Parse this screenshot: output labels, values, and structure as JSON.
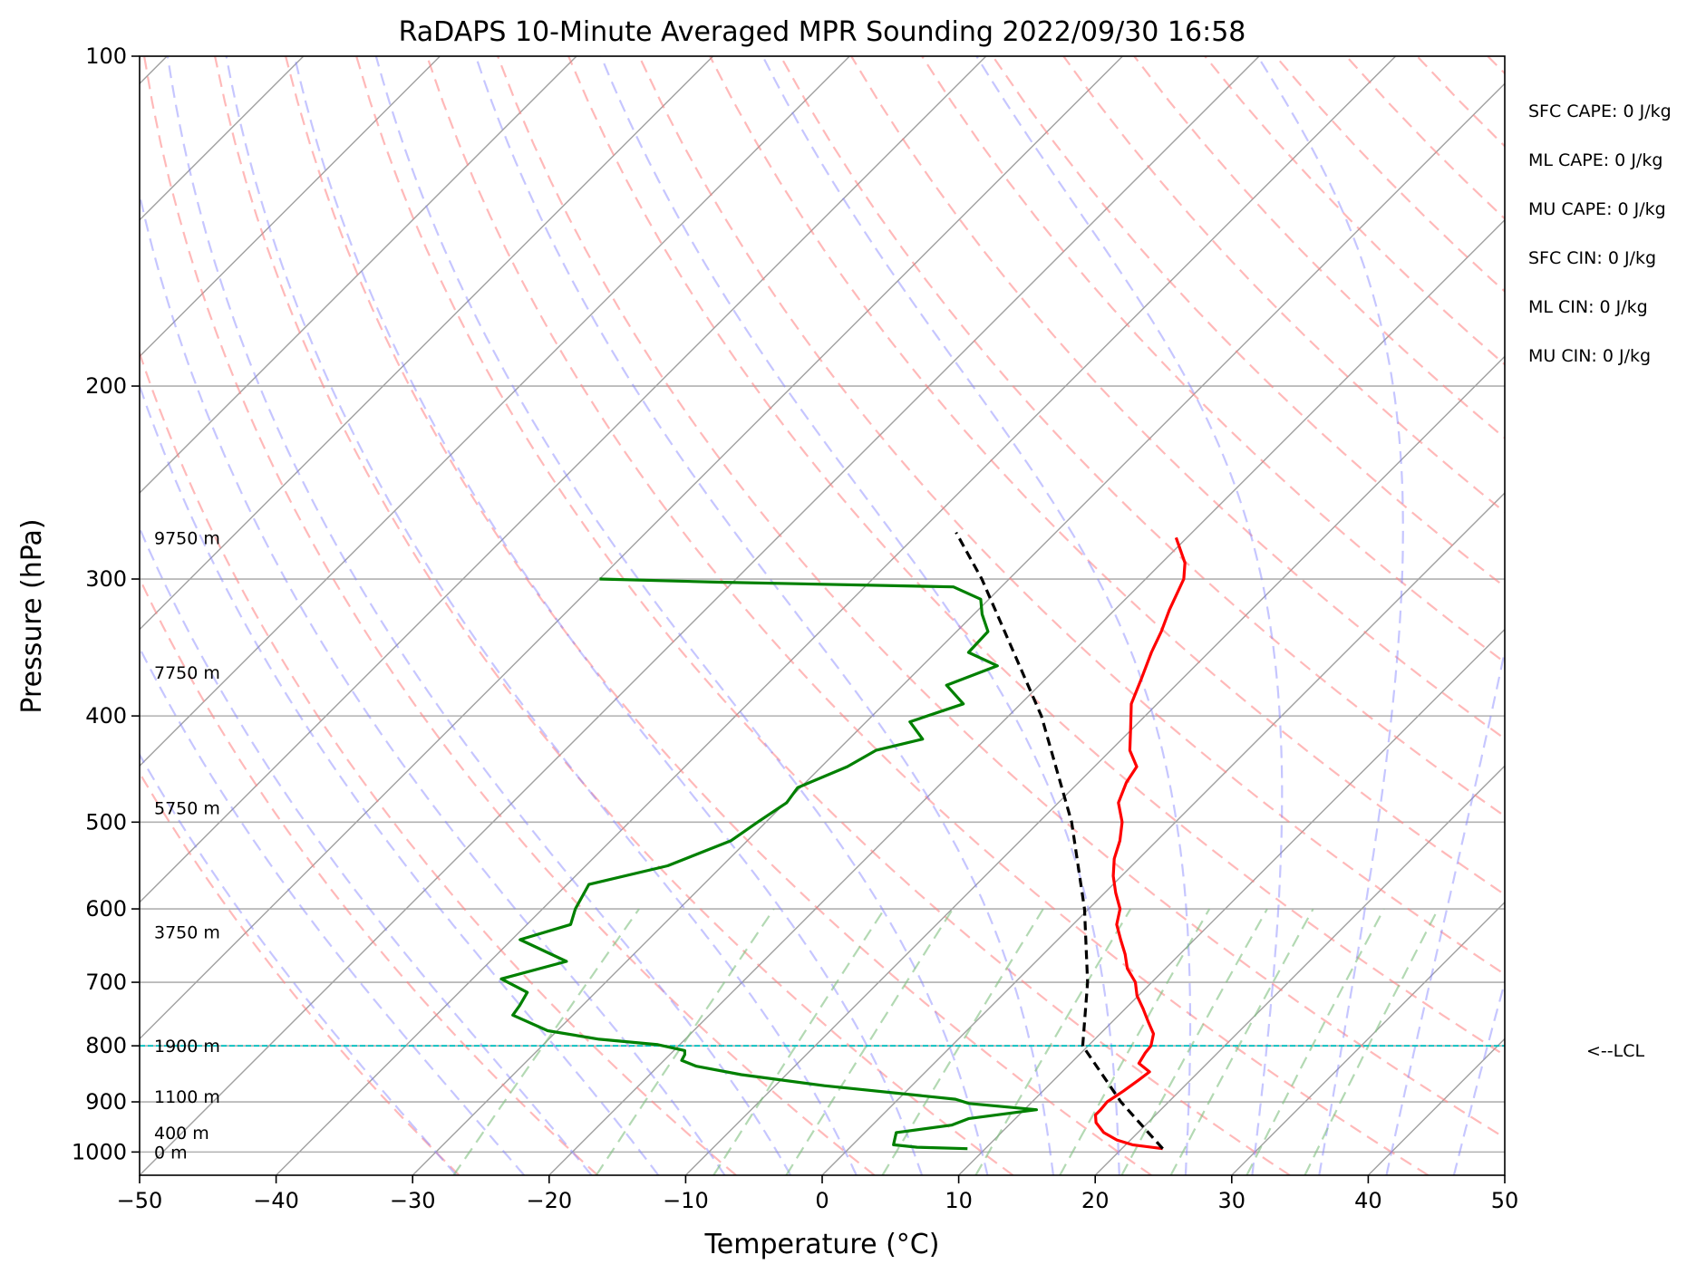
{
  "chart_data": {
    "type": "line",
    "title": "RaDAPS 10-Minute Averaged MPR Sounding 2022/09/30 16:58",
    "xlabel": "Temperature (°C)",
    "ylabel": "Pressure (hPa)",
    "xlim": [
      -50,
      50
    ],
    "ylim": [
      1050,
      100
    ],
    "y_scale": "log",
    "skew": "skew-T log-P",
    "grid": true,
    "x_ticks": [
      "−50",
      "−40",
      "−30",
      "−20",
      "−10",
      "0",
      "10",
      "20",
      "30",
      "40",
      "50"
    ],
    "x_tick_values": [
      -50,
      -40,
      -30,
      -20,
      -10,
      0,
      10,
      20,
      30,
      40,
      50
    ],
    "y_ticks": [
      "100",
      "200",
      "300",
      "400",
      "500",
      "600",
      "700",
      "800",
      "900",
      "1000"
    ],
    "y_tick_values": [
      100,
      200,
      300,
      400,
      500,
      600,
      700,
      800,
      900,
      1000
    ],
    "series": [
      {
        "id": "temperature",
        "color": "#ff0000",
        "points": [
          {
            "p": 993,
            "t": 23.0
          },
          {
            "p": 985,
            "t": 20.5
          },
          {
            "p": 975,
            "t": 19.0
          },
          {
            "p": 960,
            "t": 17.5
          },
          {
            "p": 940,
            "t": 16.2
          },
          {
            "p": 925,
            "t": 15.6
          },
          {
            "p": 915,
            "t": 15.6
          },
          {
            "p": 900,
            "t": 15.5
          },
          {
            "p": 880,
            "t": 15.9
          },
          {
            "p": 860,
            "t": 16.2
          },
          {
            "p": 845,
            "t": 16.4
          },
          {
            "p": 830,
            "t": 15.0
          },
          {
            "p": 812,
            "t": 14.7
          },
          {
            "p": 800,
            "t": 14.6
          },
          {
            "p": 780,
            "t": 13.9
          },
          {
            "p": 760,
            "t": 12.6
          },
          {
            "p": 740,
            "t": 11.3
          },
          {
            "p": 720,
            "t": 9.9
          },
          {
            "p": 700,
            "t": 8.8
          },
          {
            "p": 680,
            "t": 7.2
          },
          {
            "p": 660,
            "t": 6.0
          },
          {
            "p": 640,
            "t": 4.6
          },
          {
            "p": 620,
            "t": 3.2
          },
          {
            "p": 600,
            "t": 2.3
          },
          {
            "p": 580,
            "t": 0.8
          },
          {
            "p": 560,
            "t": -0.6
          },
          {
            "p": 540,
            "t": -1.8
          },
          {
            "p": 520,
            "t": -2.7
          },
          {
            "p": 500,
            "t": -3.9
          },
          {
            "p": 480,
            "t": -5.6
          },
          {
            "p": 460,
            "t": -6.5
          },
          {
            "p": 445,
            "t": -6.9
          },
          {
            "p": 430,
            "t": -8.6
          },
          {
            "p": 410,
            "t": -10.2
          },
          {
            "p": 390,
            "t": -11.9
          },
          {
            "p": 370,
            "t": -13.0
          },
          {
            "p": 350,
            "t": -14.2
          },
          {
            "p": 335,
            "t": -15.0
          },
          {
            "p": 320,
            "t": -16.0
          },
          {
            "p": 300,
            "t": -17.2
          },
          {
            "p": 290,
            "t": -18.3
          },
          {
            "p": 275,
            "t": -20.8
          }
        ]
      },
      {
        "id": "dewpoint",
        "color": "#008000",
        "points": [
          {
            "p": 993,
            "t": 8.7
          },
          {
            "p": 990,
            "t": 4.9
          },
          {
            "p": 985,
            "t": 3.0
          },
          {
            "p": 978,
            "t": 2.8
          },
          {
            "p": 960,
            "t": 2.3
          },
          {
            "p": 945,
            "t": 5.8
          },
          {
            "p": 932,
            "t": 6.6
          },
          {
            "p": 915,
            "t": 10.9
          },
          {
            "p": 903,
            "t": 5.5
          },
          {
            "p": 895,
            "t": 4.2
          },
          {
            "p": 870,
            "t": -6.4
          },
          {
            "p": 850,
            "t": -13.3
          },
          {
            "p": 835,
            "t": -17.2
          },
          {
            "p": 825,
            "t": -18.7
          },
          {
            "p": 815,
            "t": -18.9
          },
          {
            "p": 808,
            "t": -19.2
          },
          {
            "p": 798,
            "t": -21.6
          },
          {
            "p": 789,
            "t": -26.3
          },
          {
            "p": 775,
            "t": -30.7
          },
          {
            "p": 750,
            "t": -34.4
          },
          {
            "p": 735,
            "t": -34.6
          },
          {
            "p": 715,
            "t": -35.0
          },
          {
            "p": 695,
            "t": -37.9
          },
          {
            "p": 670,
            "t": -34.4
          },
          {
            "p": 640,
            "t": -39.4
          },
          {
            "p": 620,
            "t": -36.8
          },
          {
            "p": 600,
            "t": -37.6
          },
          {
            "p": 570,
            "t": -38.4
          },
          {
            "p": 548,
            "t": -34.0
          },
          {
            "p": 520,
            "t": -31.2
          },
          {
            "p": 500,
            "t": -30.6
          },
          {
            "p": 480,
            "t": -29.9
          },
          {
            "p": 465,
            "t": -30.2
          },
          {
            "p": 445,
            "t": -28.1
          },
          {
            "p": 430,
            "t": -27.2
          },
          {
            "p": 420,
            "t": -24.6
          },
          {
            "p": 405,
            "t": -26.8
          },
          {
            "p": 390,
            "t": -24.2
          },
          {
            "p": 375,
            "t": -26.8
          },
          {
            "p": 360,
            "t": -24.5
          },
          {
            "p": 350,
            "t": -27.6
          },
          {
            "p": 335,
            "t": -27.7
          },
          {
            "p": 323,
            "t": -29.4
          },
          {
            "p": 313,
            "t": -30.6
          },
          {
            "p": 305,
            "t": -33.5
          },
          {
            "p": 302,
            "t": -51.0
          },
          {
            "p": 300,
            "t": -60.0
          }
        ]
      },
      {
        "id": "parcel-profile",
        "color": "#000000",
        "style": "dashed",
        "points": [
          {
            "p": 993,
            "t": 23.0
          },
          {
            "p": 900,
            "t": 16.5
          },
          {
            "p": 800,
            "t": 9.6
          },
          {
            "p": 700,
            "t": 5.3
          },
          {
            "p": 600,
            "t": -0.3
          },
          {
            "p": 500,
            "t": -7.6
          },
          {
            "p": 400,
            "t": -17.6
          },
          {
            "p": 300,
            "t": -32.0
          },
          {
            "p": 272,
            "t": -37.3
          }
        ]
      }
    ],
    "lcl_pressure": 800,
    "lcl_label": "<--LCL",
    "height_labels": [
      {
        "p": 1000,
        "text": "0 m"
      },
      {
        "p": 960,
        "text": "400 m"
      },
      {
        "p": 890,
        "text": "1100 m"
      },
      {
        "p": 800,
        "text": "1900 m"
      },
      {
        "p": 630,
        "text": "3750 m"
      },
      {
        "p": 485,
        "text": "5750 m"
      },
      {
        "p": 365,
        "text": "7750 m"
      },
      {
        "p": 275,
        "text": "9750 m"
      }
    ],
    "indices": [
      "SFC CAPE: 0 J/kg",
      "ML CAPE: 0 J/kg",
      "MU CAPE: 0 J/kg",
      "SFC CIN: 0 J/kg",
      "ML CIN: 0 J/kg",
      "MU CIN: 0 J/kg"
    ],
    "reference_lines": {
      "isotherms_color": "#a0a0a0",
      "dry_adiabats_color": "#ff8080",
      "moist_adiabats_color": "#8080ff",
      "mixing_ratio_color": "#80c080",
      "lcl_color": "#00c0c0"
    }
  }
}
